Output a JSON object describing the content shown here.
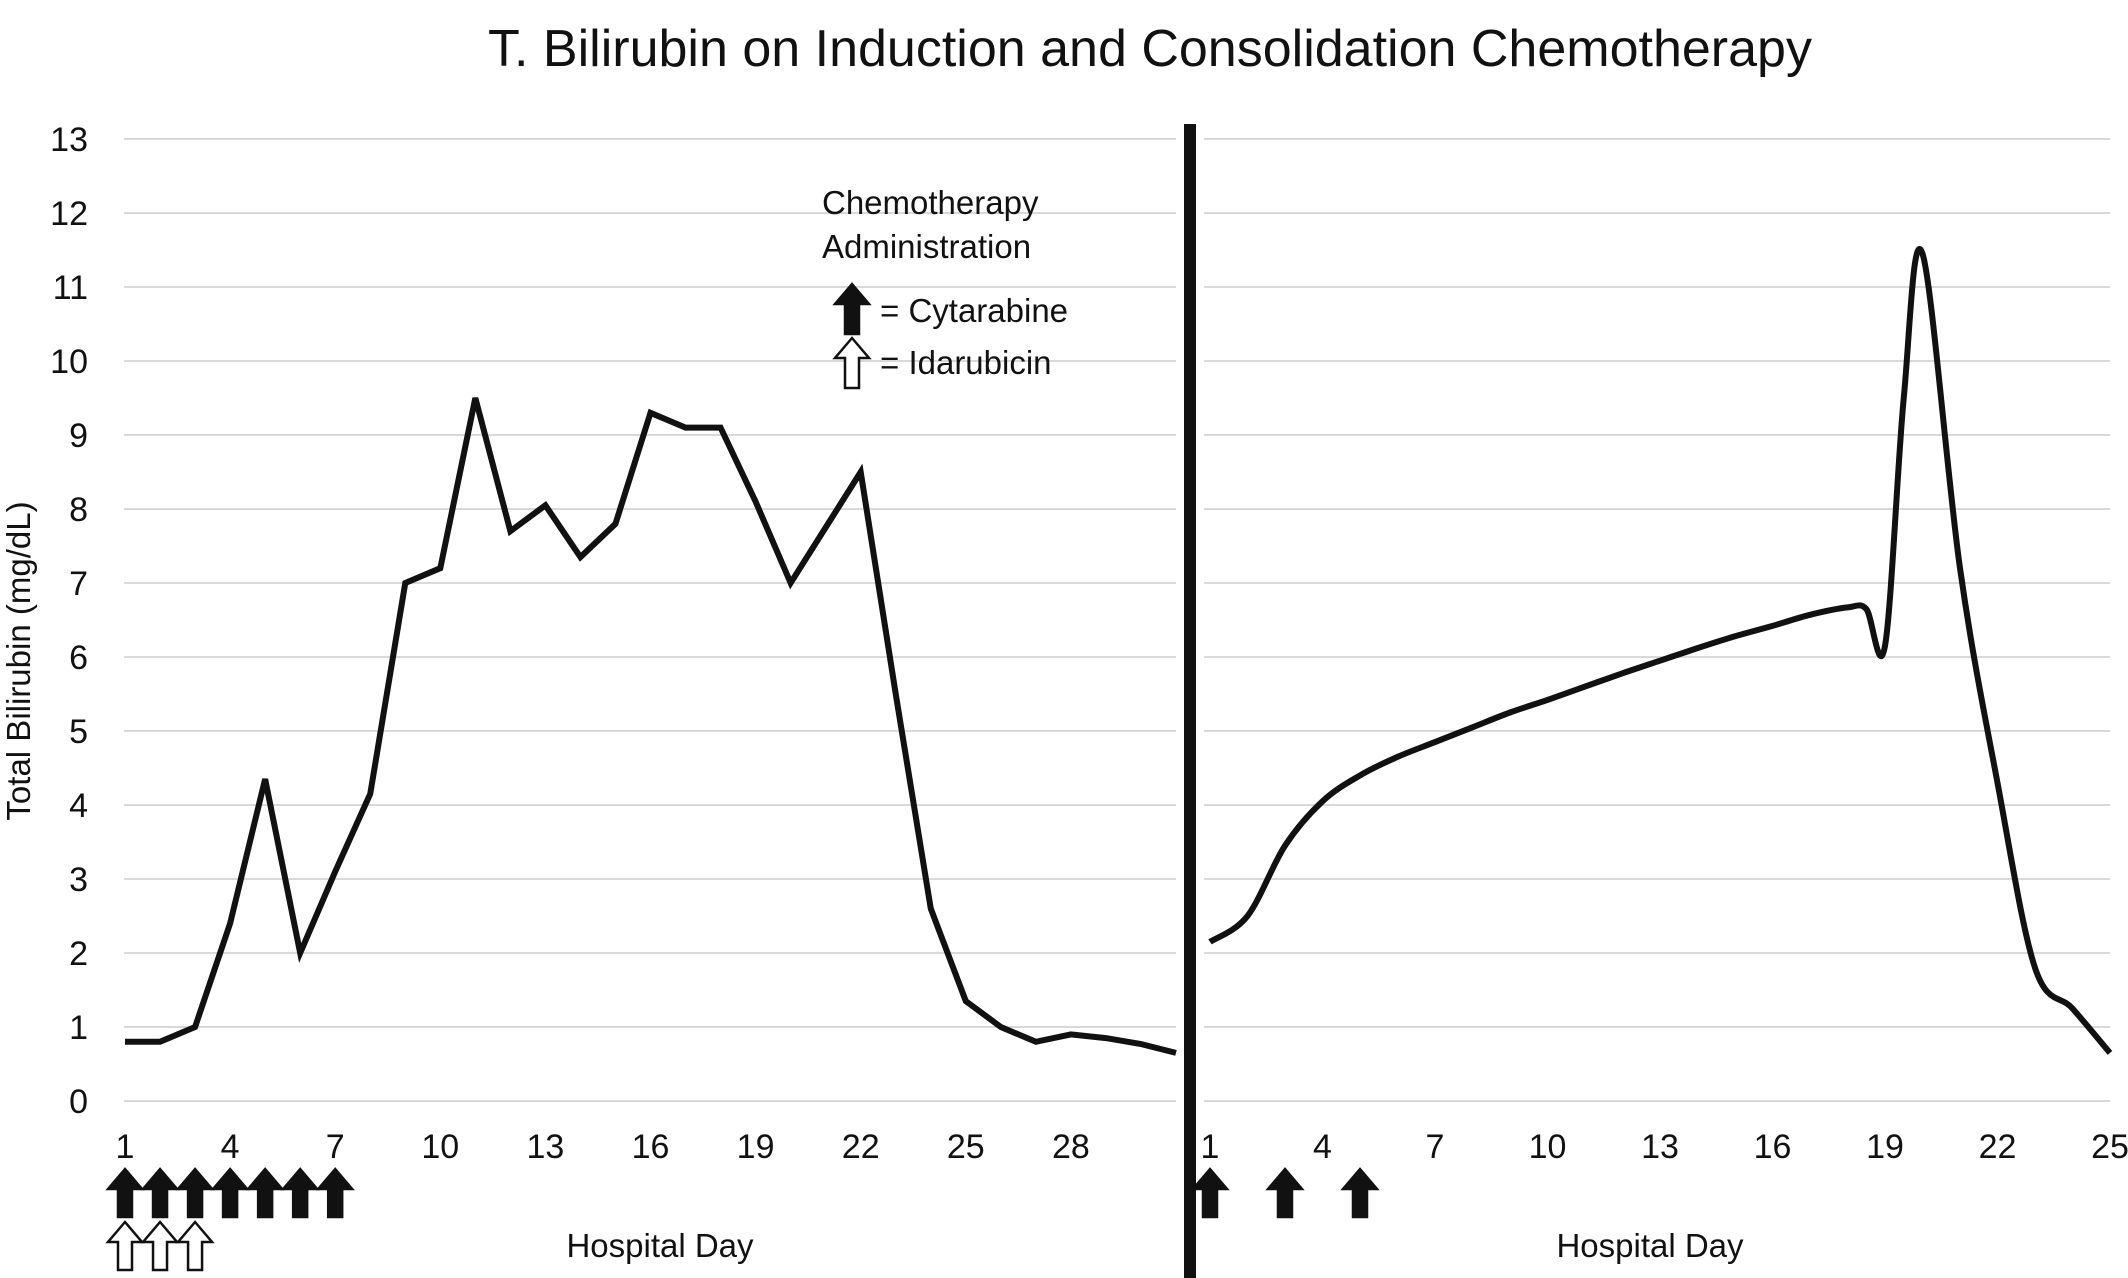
{
  "chart_data": {
    "type": "line",
    "title": "T. Bilirubin on Induction and Consolidation Chemotherapy",
    "ylabel": "Total Bilirubin (mg/dL)",
    "ylim": [
      0,
      13
    ],
    "yticks": [
      0,
      1,
      2,
      3,
      4,
      5,
      6,
      7,
      8,
      9,
      10,
      11,
      12,
      13
    ],
    "grid": true,
    "line_color": "#111111",
    "grid_color": "#d9d9d9",
    "legend": {
      "title_line1": "Chemotherapy",
      "title_line2": "Administration",
      "cytarabine": "= Cytarabine",
      "idarubicin": "= Idarubicin",
      "placement": "top-center"
    },
    "panels": [
      {
        "name": "Induction",
        "xlabel": "Hospital Day",
        "xlim": [
          1,
          31
        ],
        "xticks": [
          1,
          4,
          7,
          10,
          13,
          16,
          19,
          22,
          25,
          28
        ],
        "smooth": false,
        "x": [
          1,
          2,
          3,
          4,
          5,
          6,
          7,
          8,
          9,
          10,
          11,
          12,
          13,
          14,
          15,
          16,
          17,
          18,
          19,
          20,
          21,
          22,
          23,
          24,
          25,
          26,
          27,
          28,
          29,
          30,
          31
        ],
        "y": [
          0.8,
          0.8,
          1.0,
          2.4,
          4.35,
          2.0,
          3.1,
          4.15,
          7.0,
          7.2,
          9.5,
          7.7,
          8.05,
          7.35,
          7.8,
          9.3,
          9.1,
          9.1,
          8.1,
          7.0,
          7.75,
          8.5,
          5.5,
          2.6,
          1.35,
          1.0,
          0.8,
          0.9,
          0.85,
          0.77,
          0.65
        ],
        "cytarabine_days": [
          1,
          2,
          3,
          4,
          5,
          6,
          7
        ],
        "idarubicin_days": [
          1,
          2,
          3
        ]
      },
      {
        "name": "Consolidation",
        "xlabel": "Hospital Day",
        "xlim": [
          1,
          25
        ],
        "xticks": [
          1,
          4,
          7,
          10,
          13,
          16,
          19,
          22,
          25
        ],
        "smooth": true,
        "x": [
          1,
          2,
          3,
          4,
          5,
          6,
          7,
          8,
          9,
          10,
          11,
          12,
          13,
          14,
          15,
          16,
          17,
          18,
          18.5,
          19,
          19.5,
          20,
          21,
          22,
          23,
          24,
          25
        ],
        "y": [
          2.15,
          2.5,
          3.45,
          4.05,
          4.4,
          4.65,
          4.85,
          5.05,
          5.25,
          5.42,
          5.6,
          5.78,
          5.95,
          6.12,
          6.28,
          6.42,
          6.57,
          6.67,
          6.65,
          6.15,
          9.5,
          11.45,
          7.2,
          4.3,
          1.8,
          1.25,
          0.65
        ],
        "cytarabine_days": [
          1,
          3,
          5
        ],
        "idarubicin_days": []
      }
    ]
  }
}
